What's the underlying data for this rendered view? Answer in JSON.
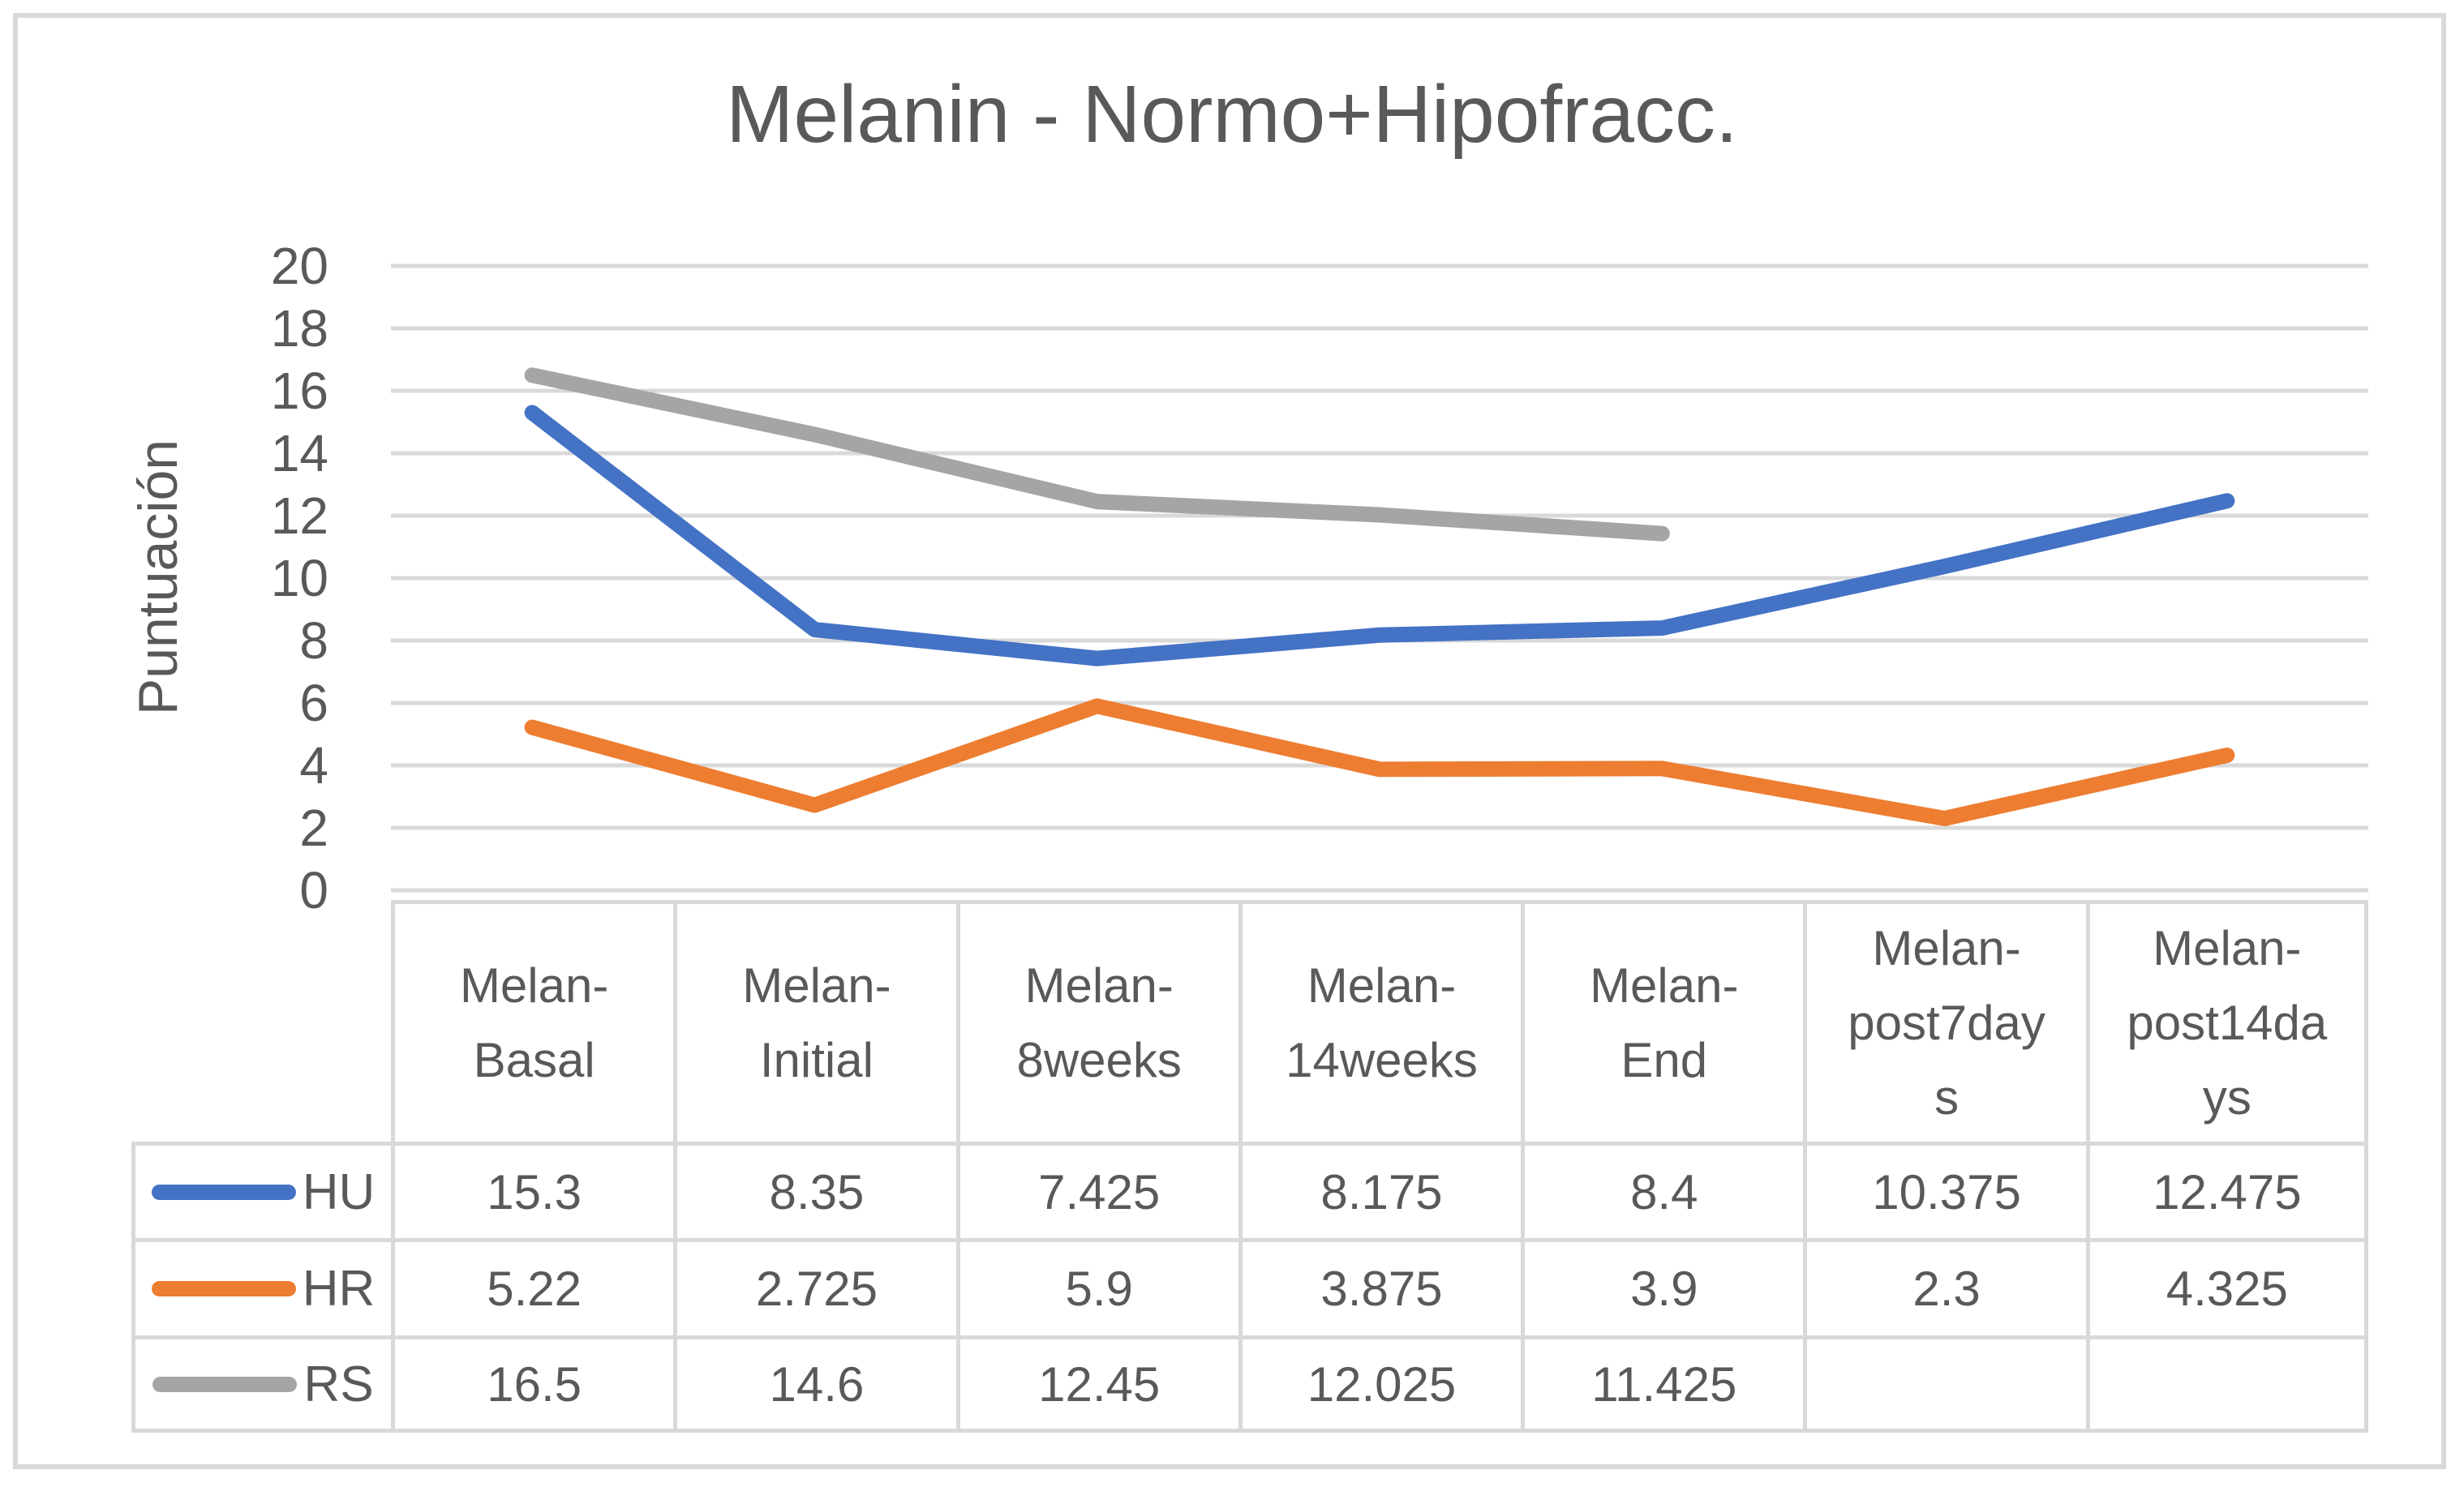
{
  "title": "Melanin - Normo+Hipofracc.",
  "colors": {
    "hu_line": "#4472C4",
    "hr_line": "#ED7D31",
    "rs_line": "#A5A5A5",
    "gridline": "#D9D9D9",
    "table_border": "#D9D9D9",
    "frame_border": "#D9D9D9",
    "text": "#595959"
  },
  "chart_data": {
    "type": "line",
    "title": "Melanin - Normo+Hipofracc.",
    "xlabel": "",
    "ylabel": "Puntuación",
    "ylim": [
      0,
      20
    ],
    "yticks": [
      0,
      2,
      4,
      6,
      8,
      10,
      12,
      14,
      16,
      18,
      20
    ],
    "grid": true,
    "legend_position": "left-of-data-table",
    "categories": [
      "Melan-Basal",
      "Melan-Initial",
      "Melan-8weeks",
      "Melan-14weeks",
      "Melan-End",
      "Melan-post7days",
      "Melan-post14days"
    ],
    "series": [
      {
        "name": "HU",
        "color": "#4472C4",
        "values": [
          15.3,
          8.35,
          7.425,
          8.175,
          8.4,
          10.375,
          12.475
        ]
      },
      {
        "name": "HR",
        "color": "#ED7D31",
        "values": [
          5.22,
          2.725,
          5.9,
          3.875,
          3.9,
          2.3,
          4.325
        ]
      },
      {
        "name": "RS",
        "color": "#A5A5A5",
        "values": [
          16.5,
          14.6,
          12.45,
          12.025,
          11.425,
          null,
          null
        ]
      }
    ]
  }
}
